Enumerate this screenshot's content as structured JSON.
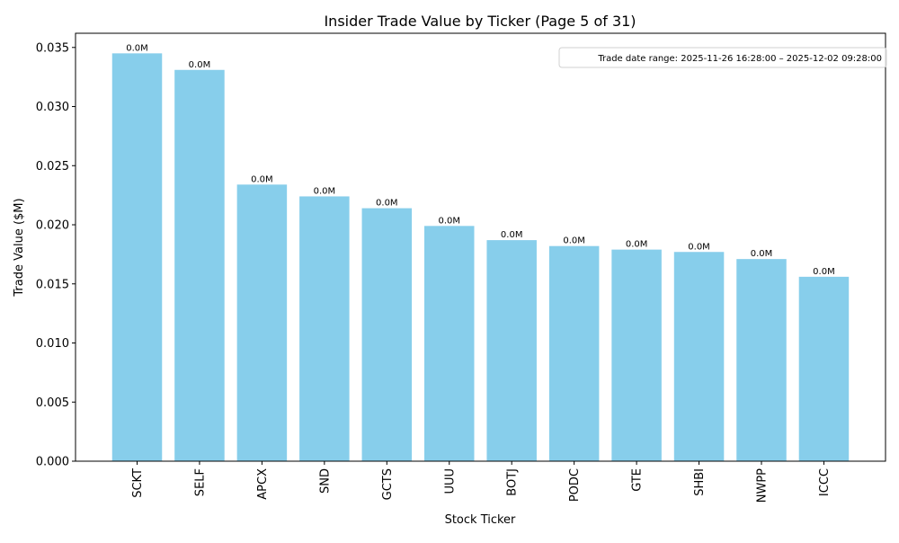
{
  "chart_data": {
    "type": "bar",
    "title": "Insider Trade Value by Ticker (Page 5 of 31)",
    "xlabel": "Stock Ticker",
    "ylabel": "Trade Value ($M)",
    "categories": [
      "SCKT",
      "SELF",
      "APCX",
      "SND",
      "GCTS",
      "UUU",
      "BOTJ",
      "PODC",
      "GTE",
      "SHBI",
      "NWPP",
      "ICCC"
    ],
    "values": [
      0.0345,
      0.0331,
      0.0234,
      0.0224,
      0.0214,
      0.0199,
      0.0187,
      0.0182,
      0.0179,
      0.0177,
      0.0171,
      0.0156
    ],
    "data_labels": [
      "0.0M",
      "0.0M",
      "0.0M",
      "0.0M",
      "0.0M",
      "0.0M",
      "0.0M",
      "0.0M",
      "0.0M",
      "0.0M",
      "0.0M",
      "0.0M"
    ],
    "ylim": [
      0,
      0.0362
    ],
    "yticks": [
      0.0,
      0.005,
      0.01,
      0.015,
      0.02,
      0.025,
      0.03,
      0.035
    ],
    "ytick_labels": [
      "0.000",
      "0.005",
      "0.010",
      "0.015",
      "0.020",
      "0.025",
      "0.030",
      "0.035"
    ],
    "grid": false,
    "bar_color": "#87ceeb",
    "annotation": "Trade date range: 2025-11-26 16:28:00 – 2025-12-02 09:28:00"
  }
}
